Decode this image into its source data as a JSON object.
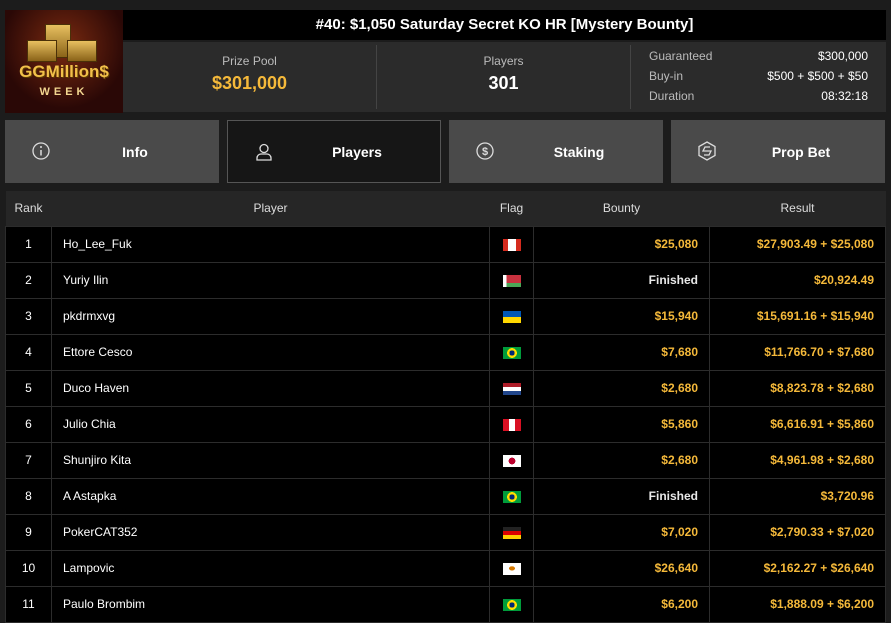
{
  "logo": {
    "text": "GGMillion$",
    "subtext": "WEEK"
  },
  "title": "#40: $1,050 Saturday Secret KO HR [Mystery Bounty]",
  "stats": {
    "prize_pool_label": "Prize Pool",
    "prize_pool": "$301,000",
    "players_label": "Players",
    "players": "301",
    "guaranteed_label": "Guaranteed",
    "guaranteed": "$300,000",
    "buyin_label": "Buy-in",
    "buyin": "$500 + $500 + $50",
    "duration_label": "Duration",
    "duration": "08:32:18"
  },
  "tabs": [
    {
      "label": "Info",
      "icon": "info-icon"
    },
    {
      "label": "Players",
      "icon": "user-icon",
      "active": true
    },
    {
      "label": "Staking",
      "icon": "dollar-icon"
    },
    {
      "label": "Prop Bet",
      "icon": "prop-bet-icon"
    }
  ],
  "colors": {
    "gold": "#f5b93a",
    "background": "#1c1c1c"
  },
  "table": {
    "headers": [
      "Rank",
      "Player",
      "Flag",
      "Bounty",
      "Result"
    ],
    "rows": [
      {
        "rank": "1",
        "player": "Ho_Lee_Fuk",
        "flag": "canada",
        "bounty": "$25,080",
        "result": "$27,903.49 + $25,080"
      },
      {
        "rank": "2",
        "player": "Yuriy Ilin",
        "flag": "belarus",
        "bounty": "Finished",
        "result": "$20,924.49"
      },
      {
        "rank": "3",
        "player": "pkdrmxvg",
        "flag": "ukraine",
        "bounty": "$15,940",
        "result": "$15,691.16 + $15,940"
      },
      {
        "rank": "4",
        "player": "Ettore Cesco",
        "flag": "brazil",
        "bounty": "$7,680",
        "result": "$11,766.70 + $7,680"
      },
      {
        "rank": "5",
        "player": "Duco Haven",
        "flag": "netherlands",
        "bounty": "$2,680",
        "result": "$8,823.78 + $2,680"
      },
      {
        "rank": "6",
        "player": "Julio Chia",
        "flag": "peru",
        "bounty": "$5,860",
        "result": "$6,616.91 + $5,860"
      },
      {
        "rank": "7",
        "player": "Shunjiro Kita",
        "flag": "japan",
        "bounty": "$2,680",
        "result": "$4,961.98 + $2,680"
      },
      {
        "rank": "8",
        "player": "A Astapka",
        "flag": "brazil",
        "bounty": "Finished",
        "result": "$3,720.96"
      },
      {
        "rank": "9",
        "player": "PokerCAT352",
        "flag": "germany",
        "bounty": "$7,020",
        "result": "$2,790.33 + $7,020"
      },
      {
        "rank": "10",
        "player": "Lampovic",
        "flag": "cyprus",
        "bounty": "$26,640",
        "result": "$2,162.27 + $26,640"
      },
      {
        "rank": "11",
        "player": "Paulo Brombim",
        "flag": "brazil",
        "bounty": "$6,200",
        "result": "$1,888.09 + $6,200"
      }
    ]
  }
}
